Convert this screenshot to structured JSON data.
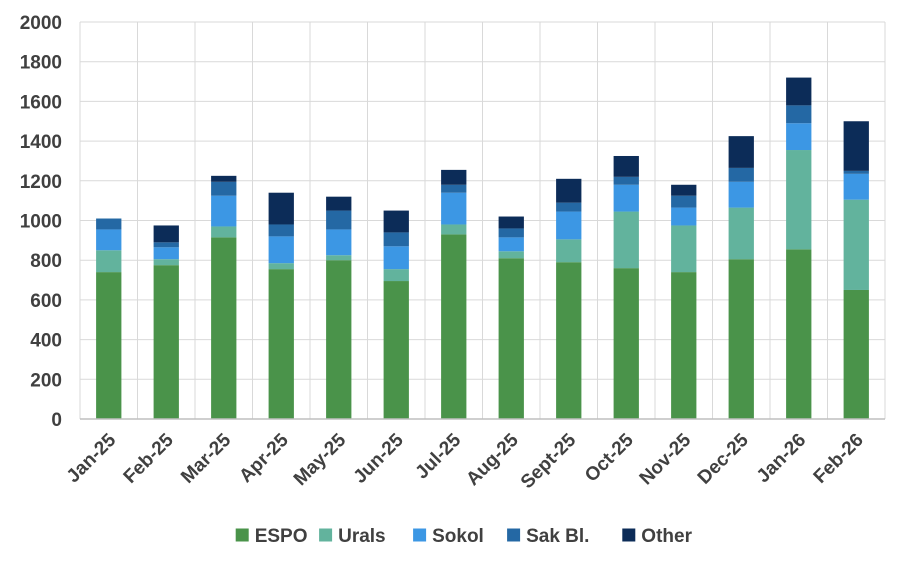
{
  "chart_data": {
    "type": "bar",
    "stacked": true,
    "title": "",
    "xlabel": "",
    "ylabel": "",
    "ylim": [
      0,
      2000
    ],
    "yticks": [
      0,
      200,
      400,
      600,
      800,
      1000,
      1200,
      1400,
      1600,
      1800,
      2000
    ],
    "grid": true,
    "legend_position": "bottom",
    "categories": [
      "Jan-25",
      "Feb-25",
      "Mar-25",
      "Apr-25",
      "May-25",
      "Jun-25",
      "Jul-25",
      "Aug-25",
      "Sept-25",
      "Oct-25",
      "Nov-25",
      "Dec-25",
      "Jan-26",
      "Feb-26"
    ],
    "series": [
      {
        "name": "ESPO",
        "color": "#4a934a",
        "values": [
          740,
          775,
          915,
          755,
          800,
          695,
          930,
          810,
          790,
          760,
          740,
          805,
          855,
          650
        ]
      },
      {
        "name": "Urals",
        "color": "#62b39d",
        "values": [
          110,
          30,
          55,
          30,
          25,
          60,
          50,
          35,
          115,
          285,
          235,
          260,
          500,
          455
        ]
      },
      {
        "name": "Sokol",
        "color": "#3c97e4",
        "values": [
          105,
          60,
          155,
          135,
          130,
          115,
          160,
          70,
          140,
          135,
          90,
          130,
          135,
          130
        ]
      },
      {
        "name": "Sak Bl.",
        "color": "#2468a4",
        "values": [
          55,
          25,
          70,
          60,
          95,
          70,
          40,
          45,
          45,
          40,
          60,
          70,
          90,
          15
        ]
      },
      {
        "name": "Other",
        "color": "#0c2c58",
        "values": [
          0,
          85,
          30,
          160,
          70,
          110,
          75,
          60,
          120,
          105,
          55,
          160,
          140,
          250
        ]
      }
    ]
  }
}
